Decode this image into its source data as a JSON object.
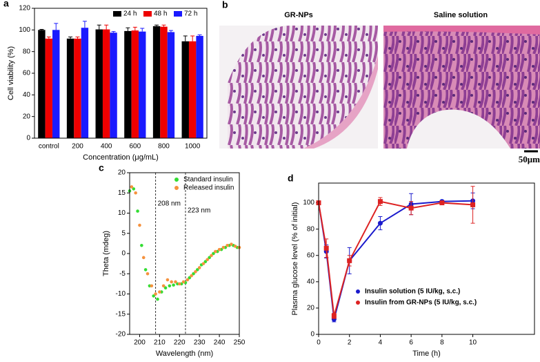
{
  "chart_data": [
    {
      "type": "bar",
      "panel": "a",
      "ylabel": "Cell viability (%)",
      "xlabel": "Concentration (μg/mL)",
      "categories": [
        "control",
        "200",
        "400",
        "600",
        "800",
        "1000"
      ],
      "series": [
        {
          "name": "24 h",
          "color": "#000000",
          "values": [
            100,
            92,
            100.5,
            99,
            103.5,
            89.5
          ],
          "errors": [
            0.5,
            1.5,
            4,
            3,
            1,
            5
          ]
        },
        {
          "name": "48 h",
          "color": "#ee0000",
          "values": [
            92,
            92,
            100.5,
            99.5,
            103,
            89.5
          ],
          "errors": [
            1.5,
            1.5,
            4,
            3,
            1.5,
            5
          ]
        },
        {
          "name": "72 h",
          "color": "#1a1aff",
          "values": [
            100,
            102,
            97.5,
            98.5,
            98,
            94.5
          ],
          "errors": [
            6,
            6,
            1,
            3,
            1.5,
            1
          ]
        }
      ],
      "ylim": [
        0,
        120
      ],
      "yticks": [
        0,
        20,
        40,
        60,
        80,
        100,
        120
      ],
      "legend": "upper right"
    },
    {
      "type": "scatter",
      "panel": "c",
      "ylabel": "Theta (mdeg)",
      "xlabel": "Wavelength (nm)",
      "series": [
        {
          "name": "Standard insulin",
          "color": "#33dd33",
          "x": [
            195,
            197,
            199,
            201,
            203,
            205,
            207,
            209,
            211,
            213,
            215,
            217,
            219,
            221,
            223,
            225,
            227,
            229,
            231,
            233,
            235,
            237,
            239,
            241,
            243,
            245,
            247,
            249
          ],
          "values": [
            15.5,
            16,
            10.5,
            2,
            -4,
            -8,
            -10.5,
            -11.3,
            -9.5,
            -8.5,
            -8,
            -7.8,
            -7.5,
            -7.5,
            -7.2,
            -6,
            -5,
            -4,
            -2.8,
            -2,
            -1,
            0,
            0.5,
            1,
            1.5,
            2,
            2,
            1.5
          ]
        },
        {
          "name": "Released insulin",
          "color": "#f5923e",
          "x": [
            196,
            198,
            200,
            202,
            204,
            206,
            208,
            210,
            212,
            214,
            216,
            218,
            220,
            222,
            224,
            226,
            228,
            230,
            232,
            234,
            236,
            238,
            240,
            242,
            244,
            246,
            248,
            250
          ],
          "values": [
            16.5,
            15,
            7,
            -1,
            -5,
            -8,
            -10,
            -9.5,
            -8,
            -6.5,
            -7,
            -7,
            -7.5,
            -7,
            -6.5,
            -5.5,
            -4.5,
            -3.5,
            -2.5,
            -1.5,
            -0.5,
            0.5,
            1,
            1.5,
            2,
            2.3,
            1.8,
            1.5
          ]
        }
      ],
      "vlines": [
        {
          "x": 208,
          "label": "208 nm"
        },
        {
          "x": 223,
          "label": "223 nm"
        }
      ],
      "xlim": [
        195,
        250
      ],
      "xticks": [
        200,
        210,
        220,
        230,
        240,
        250
      ],
      "ylim": [
        -20,
        20
      ],
      "yticks": [
        -20,
        -15,
        -10,
        -5,
        0,
        5,
        10,
        15,
        20
      ],
      "legend": "upper right"
    },
    {
      "type": "line",
      "panel": "d",
      "ylabel": "Plasma glucose level (% of initial)",
      "xlabel": "Time (h)",
      "x": [
        0,
        0.5,
        1,
        2,
        4,
        6,
        8,
        10
      ],
      "series": [
        {
          "name": "Insulin solution (5 IU/kg, s.c.)",
          "color": "#1a1acc",
          "values": [
            100,
            63,
            11.5,
            56,
            84.5,
            99,
            101,
            101.5
          ],
          "errors": [
            0,
            5,
            2,
            10,
            5,
            8,
            1,
            6
          ]
        },
        {
          "name": "Insulin from GR-NPs (5 IU/kg, s.c.)",
          "color": "#dd2222",
          "values": [
            100,
            65.5,
            14,
            56,
            101,
            96,
            100,
            98.5
          ],
          "errors": [
            0,
            7,
            2,
            4,
            3,
            5,
            1,
            14
          ]
        }
      ],
      "xlim": [
        0,
        14
      ],
      "xticks": [
        0,
        2,
        4,
        6,
        8,
        10
      ],
      "ylim": [
        0,
        115
      ],
      "yticks": [
        0,
        20,
        40,
        60,
        80,
        100
      ],
      "legend": "lower right"
    }
  ],
  "images": {
    "panel": "b",
    "labels": [
      "GR-NPs",
      "Saline solution"
    ],
    "scale_bar": "50μm"
  }
}
